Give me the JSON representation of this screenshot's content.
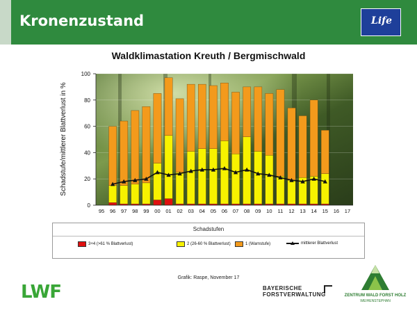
{
  "header": {
    "title": "Kronenzustand",
    "eu_logo_text": "Life",
    "color": "#2f8a3e"
  },
  "chart_data": {
    "type": "bar",
    "stacked": true,
    "title": "Waldklimastation Kreuth / Bergmischwald",
    "xlabel": "",
    "ylabel": "Schadstufe/mittlerer Blattverlust in %",
    "ylim": [
      0,
      100
    ],
    "yticks": [
      0,
      20,
      40,
      60,
      80,
      100
    ],
    "categories": [
      "95",
      "96",
      "97",
      "98",
      "99",
      "00",
      "01",
      "02",
      "03",
      "04",
      "05",
      "06",
      "07",
      "08",
      "09",
      "10",
      "11",
      "12",
      "13",
      "14",
      "15",
      "16",
      "17"
    ],
    "series": [
      {
        "name": "3+4 (>61 % Blattverlust)",
        "color": "#e01010",
        "values": [
          null,
          2,
          1,
          1,
          1,
          4,
          5,
          1,
          1,
          1,
          1,
          1,
          1,
          1,
          1,
          1,
          1,
          1,
          1,
          1,
          1,
          null,
          null
        ]
      },
      {
        "name": "2 (26-60 % Blattverlust)",
        "color": "#f7f200",
        "values": [
          null,
          13,
          14,
          15,
          16,
          28,
          48,
          24,
          40,
          42,
          42,
          48,
          38,
          51,
          40,
          37,
          21,
          18,
          20,
          21,
          23,
          null,
          null
        ]
      },
      {
        "name": "1 (Warnstufe)",
        "color": "#f39a1c",
        "values": [
          null,
          45,
          49,
          56,
          58,
          53,
          44,
          56,
          51,
          49,
          48,
          44,
          47,
          38,
          49,
          47,
          66,
          55,
          47,
          58,
          33,
          null,
          null
        ]
      }
    ],
    "line": {
      "name": "mittlerer Blattverlust",
      "color": "#111111",
      "values": [
        null,
        16,
        18,
        19,
        20,
        25,
        23,
        24,
        26,
        27,
        27,
        28,
        25,
        27,
        24,
        23,
        21,
        19,
        18,
        20,
        18,
        null,
        null
      ]
    },
    "legend_title": "Schadstufen",
    "legend_position": "bottom",
    "grid": true
  },
  "credit": "Grafik: Raspe, November 17",
  "logos": {
    "lwf": "LWF",
    "bayern_line1": "BAYERISCHE",
    "bayern_line2": "FORSTVERWALTUNG",
    "zwf_line1": "ZENTRUM WALD FORST HOLZ",
    "zwf_line2": "WEIHENSTEPHAN"
  }
}
